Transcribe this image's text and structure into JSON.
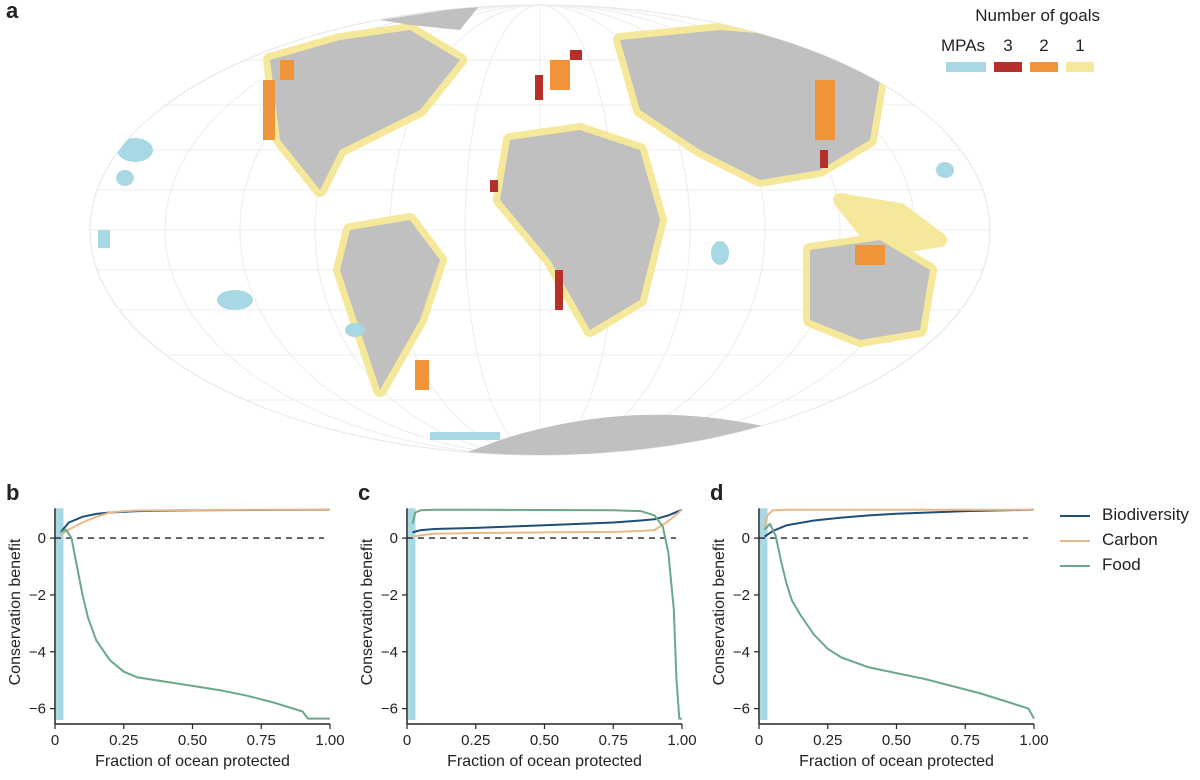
{
  "panels": {
    "a": "a",
    "b": "b",
    "c": "c",
    "d": "d"
  },
  "map": {
    "legend": {
      "title": "Number of goals",
      "items": [
        {
          "label": "MPAs",
          "color": "#a8d8e4"
        },
        {
          "label": "3",
          "color": "#b5302a"
        },
        {
          "label": "2",
          "color": "#f0943a"
        },
        {
          "label": "1",
          "color": "#f5e89a"
        }
      ]
    },
    "land_color": "#c0c0c0",
    "ocean_color": "#ffffff"
  },
  "line_legend": [
    {
      "name": "Biodiversity",
      "color": "#1f4e79"
    },
    {
      "name": "Carbon",
      "color": "#e6b98a"
    },
    {
      "name": "Food",
      "color": "#6aa889"
    }
  ],
  "chart_data": [
    {
      "panel": "b",
      "type": "line",
      "xlabel": "Fraction of ocean protected",
      "ylabel": "Conservation benefit",
      "xlim": [
        0,
        1
      ],
      "ylim": [
        -6.4,
        1.2
      ],
      "xticks": [
        "0",
        "0.25",
        "0.50",
        "0.75",
        "1.00"
      ],
      "yticks": [
        "−6",
        "−4",
        "−2",
        "0"
      ],
      "mpa_fraction": 0.02,
      "series": [
        {
          "name": "Biodiversity",
          "x": [
            0.02,
            0.05,
            0.1,
            0.15,
            0.2,
            0.3,
            0.5,
            0.75,
            1.0
          ],
          "y": [
            0.2,
            0.55,
            0.75,
            0.85,
            0.9,
            0.95,
            0.98,
            0.99,
            1.0
          ]
        },
        {
          "name": "Carbon",
          "x": [
            0.02,
            0.05,
            0.1,
            0.15,
            0.2,
            0.25,
            0.3,
            0.5,
            0.75,
            1.0
          ],
          "y": [
            0.1,
            0.3,
            0.55,
            0.75,
            0.9,
            0.95,
            0.97,
            0.99,
            1.0,
            1.0
          ]
        },
        {
          "name": "Food",
          "x": [
            0.02,
            0.04,
            0.06,
            0.08,
            0.1,
            0.12,
            0.15,
            0.2,
            0.25,
            0.3,
            0.4,
            0.5,
            0.6,
            0.7,
            0.8,
            0.9,
            0.92,
            1.0
          ],
          "y": [
            0.2,
            0.3,
            0.0,
            -1.0,
            -2.0,
            -2.8,
            -3.6,
            -4.3,
            -4.7,
            -4.9,
            -5.05,
            -5.2,
            -5.35,
            -5.55,
            -5.8,
            -6.1,
            -6.35,
            -6.35
          ]
        }
      ]
    },
    {
      "panel": "c",
      "type": "line",
      "xlabel": "Fraction of ocean protected",
      "ylabel": "Conservation benefit",
      "xlim": [
        0,
        1
      ],
      "ylim": [
        -6.4,
        1.2
      ],
      "xticks": [
        "0",
        "0.25",
        "0.50",
        "0.75",
        "1.00"
      ],
      "yticks": [
        "−6",
        "−4",
        "−2",
        "0"
      ],
      "mpa_fraction": 0.02,
      "series": [
        {
          "name": "Biodiversity",
          "x": [
            0.02,
            0.05,
            0.1,
            0.25,
            0.5,
            0.75,
            0.85,
            0.9,
            0.95,
            1.0
          ],
          "y": [
            0.2,
            0.28,
            0.32,
            0.36,
            0.45,
            0.55,
            0.62,
            0.66,
            0.8,
            1.0
          ]
        },
        {
          "name": "Carbon",
          "x": [
            0.02,
            0.05,
            0.1,
            0.25,
            0.5,
            0.75,
            0.85,
            0.9,
            0.95,
            1.0
          ],
          "y": [
            0.05,
            0.1,
            0.15,
            0.18,
            0.2,
            0.22,
            0.25,
            0.28,
            0.6,
            1.0
          ]
        },
        {
          "name": "Food",
          "x": [
            0.02,
            0.03,
            0.05,
            0.1,
            0.25,
            0.5,
            0.75,
            0.85,
            0.9,
            0.93,
            0.95,
            0.97,
            0.98,
            0.99,
            1.0
          ],
          "y": [
            0.5,
            0.9,
            0.98,
            1.0,
            1.0,
            0.99,
            0.98,
            0.95,
            0.8,
            0.4,
            -0.5,
            -2.5,
            -5.0,
            -6.35,
            -6.35
          ]
        }
      ]
    },
    {
      "panel": "d",
      "type": "line",
      "xlabel": "Fraction of ocean protected",
      "ylabel": "Conservation benefit",
      "xlim": [
        0,
        1
      ],
      "ylim": [
        -6.4,
        1.2
      ],
      "xticks": [
        "0",
        "0.25",
        "0.50",
        "0.75",
        "1.00"
      ],
      "yticks": [
        "−6",
        "−4",
        "−2",
        "0"
      ],
      "mpa_fraction": 0.02,
      "series": [
        {
          "name": "Biodiversity",
          "x": [
            0.02,
            0.05,
            0.1,
            0.2,
            0.3,
            0.4,
            0.5,
            0.75,
            1.0
          ],
          "y": [
            0.05,
            0.25,
            0.45,
            0.62,
            0.72,
            0.8,
            0.86,
            0.95,
            1.0
          ]
        },
        {
          "name": "Carbon",
          "x": [
            0.02,
            0.03,
            0.05,
            0.1,
            0.25,
            0.5,
            1.0
          ],
          "y": [
            0.3,
            0.8,
            0.98,
            1.0,
            1.0,
            1.0,
            1.0
          ]
        },
        {
          "name": "Food",
          "x": [
            0.02,
            0.04,
            0.06,
            0.08,
            0.1,
            0.12,
            0.15,
            0.2,
            0.25,
            0.3,
            0.4,
            0.5,
            0.6,
            0.7,
            0.8,
            0.9,
            0.98,
            1.0
          ],
          "y": [
            0.3,
            0.5,
            0.1,
            -0.8,
            -1.6,
            -2.2,
            -2.7,
            -3.4,
            -3.9,
            -4.2,
            -4.55,
            -4.75,
            -4.95,
            -5.2,
            -5.45,
            -5.75,
            -6.0,
            -6.35
          ]
        }
      ]
    }
  ]
}
